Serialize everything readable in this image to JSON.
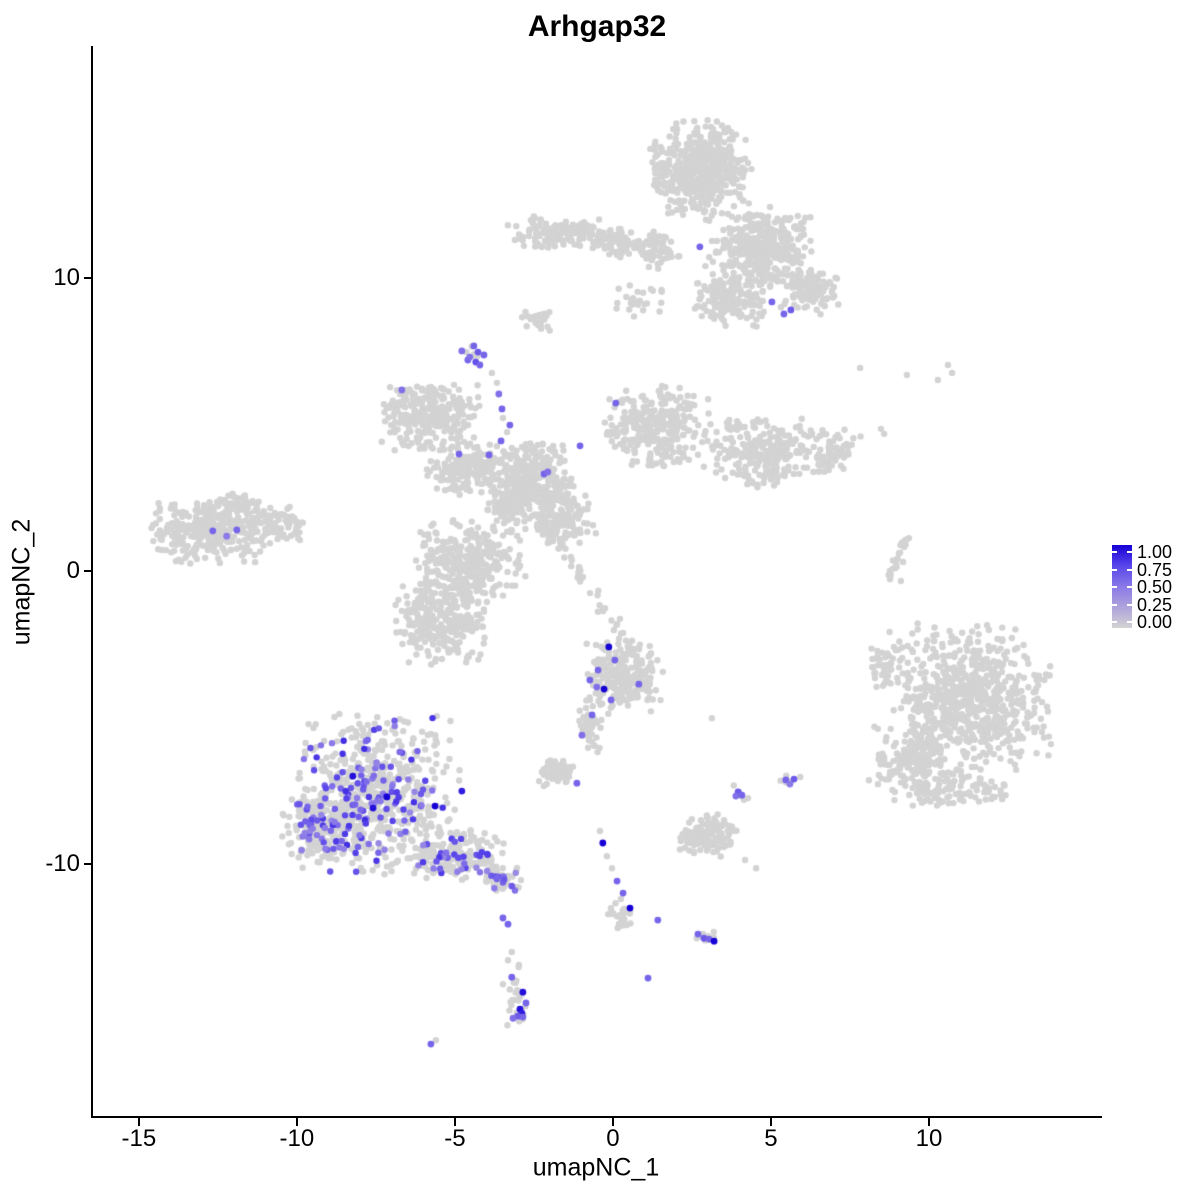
{
  "chart_data": {
    "type": "scatter",
    "title": "Arhgap32",
    "xlabel": "umapNC_1",
    "ylabel": "umapNC_2",
    "x_ticks": [
      -15,
      -10,
      -5,
      0,
      5,
      10
    ],
    "y_ticks": [
      -10,
      0,
      10
    ],
    "x_range": [
      -16.45,
      15.41
    ],
    "y_range": [
      -18.63,
      17.88
    ],
    "grid": false,
    "point_radius": 3.2,
    "colors": {
      "base": "#D3D3D3",
      "scale": [
        "#D3D3D3",
        "#AFA3DC",
        "#8A79E8",
        "#5946EA",
        "#1500D6"
      ]
    },
    "legend": {
      "position": "right",
      "labels": [
        "1.00",
        "0.75",
        "0.50",
        "0.25",
        "0.00"
      ]
    },
    "clusters": [
      {
        "name": "top-main",
        "cx": 2.75,
        "cy": 13.7,
        "rx": 1.45,
        "ry": 1.55,
        "n": 500,
        "ne": 0
      },
      {
        "name": "top-east",
        "cx": 4.65,
        "cy": 10.96,
        "rx": 1.6,
        "ry": 1.35,
        "n": 350,
        "ne": 0
      },
      {
        "name": "top-east-tip",
        "cx": 6.23,
        "cy": 9.59,
        "rx": 0.9,
        "ry": 0.75,
        "n": 120,
        "ne": 0
      },
      {
        "name": "top-band-west",
        "cx": -1.68,
        "cy": 11.54,
        "rx": 1.55,
        "ry": 0.5,
        "n": 140,
        "ne": 0
      },
      {
        "name": "top-band-mid",
        "cx": 0.22,
        "cy": 11.23,
        "rx": 0.95,
        "ry": 0.48,
        "n": 90,
        "ne": 0
      },
      {
        "name": "top-band-join",
        "cx": 1.49,
        "cy": 10.96,
        "rx": 0.65,
        "ry": 0.6,
        "n": 60,
        "ne": 0
      },
      {
        "name": "top-south-ext",
        "cx": 3.7,
        "cy": 9.25,
        "rx": 1.1,
        "ry": 0.85,
        "n": 150,
        "ne": 0
      },
      {
        "name": "top-sparse-south",
        "cx": 0.85,
        "cy": 9.25,
        "rx": 0.8,
        "ry": 0.65,
        "n": 25,
        "ne": 0
      },
      {
        "name": "small-mid-upper",
        "cx": -2.37,
        "cy": 8.57,
        "rx": 0.47,
        "ry": 0.35,
        "n": 30,
        "ne": 0
      },
      {
        "name": "under-purple-blob",
        "cx": -4.4,
        "cy": 7.4,
        "rx": 0.3,
        "ry": 0.35,
        "n": 6,
        "ne": 0
      },
      {
        "name": "x-arm-nw",
        "cx": -5.79,
        "cy": 5.32,
        "rx": 1.42,
        "ry": 1.09,
        "n": 280,
        "ne": 0
      },
      {
        "name": "x-arm-w",
        "cx": -4.59,
        "cy": 3.52,
        "rx": 1.2,
        "ry": 0.89,
        "n": 180,
        "ne": 0
      },
      {
        "name": "x-center",
        "cx": -2.56,
        "cy": 3.11,
        "rx": 1.27,
        "ry": 1.19,
        "n": 280,
        "ne": 0
      },
      {
        "name": "x-arm-ne",
        "cx": 1.42,
        "cy": 4.88,
        "rx": 1.52,
        "ry": 1.37,
        "n": 300,
        "ne": 0
      },
      {
        "name": "x-arm-e",
        "cx": 4.59,
        "cy": 4.06,
        "rx": 1.52,
        "ry": 1.13,
        "n": 230,
        "ne": 0
      },
      {
        "name": "x-arm-e-tip",
        "cx": 6.87,
        "cy": 4.06,
        "rx": 0.9,
        "ry": 0.75,
        "n": 70,
        "ne": 0
      },
      {
        "name": "x-center-s",
        "cx": -1.61,
        "cy": 1.74,
        "rx": 0.95,
        "ry": 0.85,
        "n": 140,
        "ne": 0
      },
      {
        "name": "x-lobe-sw",
        "cx": -4.53,
        "cy": 0.31,
        "rx": 1.58,
        "ry": 1.37,
        "n": 320,
        "ne": 0
      },
      {
        "name": "x-lobe-sw2",
        "cx": -5.41,
        "cy": -1.74,
        "rx": 1.42,
        "ry": 1.37,
        "n": 280,
        "ne": 0
      },
      {
        "name": "x-join",
        "cx": -3.26,
        "cy": 2.25,
        "rx": 0.7,
        "ry": 0.85,
        "n": 80,
        "ne": 0
      },
      {
        "name": "left-main",
        "cx": -12.75,
        "cy": 1.33,
        "rx": 1.65,
        "ry": 1.02,
        "n": 300,
        "ne": 0
      },
      {
        "name": "left-east",
        "cx": -10.79,
        "cy": 1.57,
        "rx": 0.9,
        "ry": 0.6,
        "n": 90,
        "ne": 0
      },
      {
        "name": "left-north",
        "cx": -11.96,
        "cy": 2.25,
        "rx": 0.8,
        "ry": 0.4,
        "n": 50,
        "ne": 0
      },
      {
        "name": "right-main",
        "cx": 11.36,
        "cy": -4.4,
        "rx": 2.28,
        "ry": 2.32,
        "n": 700,
        "ne": 0
      },
      {
        "name": "right-sw-arm",
        "cx": 9.46,
        "cy": -6.52,
        "rx": 1.2,
        "ry": 1.19,
        "n": 170,
        "ne": 0
      },
      {
        "name": "right-w-app",
        "cx": 8.7,
        "cy": -3.31,
        "rx": 0.57,
        "ry": 0.85,
        "n": 50,
        "ne": 0
      },
      {
        "name": "right-s-fringe",
        "cx": 10.98,
        "cy": -7.47,
        "rx": 1.6,
        "ry": 0.6,
        "n": 80,
        "ne": 0
      },
      {
        "name": "mid-main",
        "cx": 0.28,
        "cy": -3.65,
        "rx": 1.14,
        "ry": 1.16,
        "n": 230,
        "ne": 0
      },
      {
        "name": "mid-tail",
        "cx": -0.73,
        "cy": -5.43,
        "rx": 0.38,
        "ry": 0.75,
        "n": 45,
        "ne": 0
      },
      {
        "name": "small-blob-w",
        "cx": -1.77,
        "cy": -6.89,
        "rx": 0.54,
        "ry": 0.44,
        "n": 55,
        "ne": 0
      },
      {
        "name": "dot-blob-a",
        "cx": 4.02,
        "cy": -7.58,
        "rx": 0.28,
        "ry": 0.27,
        "n": 5,
        "ne": 0
      },
      {
        "name": "dot-blob-b",
        "cx": 5.63,
        "cy": -7.17,
        "rx": 0.35,
        "ry": 0.27,
        "n": 6,
        "ne": 0
      },
      {
        "name": "low-mid",
        "cx": 3.07,
        "cy": -9.01,
        "rx": 0.9,
        "ry": 0.75,
        "n": 130,
        "ne": 0
      },
      {
        "name": "trail-blob",
        "cx": 0.28,
        "cy": -11.74,
        "rx": 0.44,
        "ry": 0.55,
        "n": 28,
        "ne": 0
      },
      {
        "name": "trail-end",
        "cx": 2.94,
        "cy": -12.56,
        "rx": 0.41,
        "ry": 0.27,
        "n": 12,
        "ne": 0
      },
      {
        "name": "bl-main",
        "cx": -7.53,
        "cy": -7.65,
        "rx": 2.37,
        "ry": 2.56,
        "n": 560,
        "ne": 130,
        "vlo": 0.4,
        "vhi": 0.85
      },
      {
        "name": "bl-west",
        "cx": -9.27,
        "cy": -8.84,
        "rx": 1.11,
        "ry": 1.02,
        "n": 120,
        "ne": 28,
        "vlo": 0.4,
        "vhi": 0.8
      },
      {
        "name": "bl-tail",
        "cx": -4.84,
        "cy": -9.69,
        "rx": 1.27,
        "ry": 0.85,
        "n": 140,
        "ne": 30,
        "vlo": 0.4,
        "vhi": 0.8
      },
      {
        "name": "bl-tail-far",
        "cx": -3.42,
        "cy": -10.55,
        "rx": 0.57,
        "ry": 0.41,
        "n": 40,
        "ne": 10,
        "vlo": 0.4,
        "vhi": 0.7
      },
      {
        "name": "bottom-blob",
        "cx": -3.07,
        "cy": -14.47,
        "rx": 0.28,
        "ry": 1.02,
        "n": 25,
        "ne": 0
      }
    ],
    "streaks": [
      {
        "name": "diagonal-streak",
        "x1": -2.25,
        "y1": 1.74,
        "x2": 1.11,
        "y2": -3.45,
        "n": 55,
        "jitter": 0.12
      },
      {
        "name": "right-trail",
        "x1": 8.7,
        "y1": -0.41,
        "x2": 9.27,
        "y2": 1.13,
        "n": 22,
        "jitter": 0.06
      }
    ],
    "singles": [
      [
        7.82,
        6.93
      ],
      [
        9.3,
        6.69
      ],
      [
        10.6,
        7.03
      ],
      [
        10.73,
        6.76
      ],
      [
        10.28,
        6.52
      ],
      [
        8.48,
        4.85
      ],
      [
        8.58,
        4.68
      ],
      [
        9.05,
        0.61
      ],
      [
        9.18,
        0.31
      ],
      [
        9.11,
        -0.34
      ],
      [
        -3.83,
        6.76
      ],
      [
        -3.67,
        6.42
      ],
      [
        -3.48,
        5.22
      ],
      [
        -3.35,
        4.74
      ],
      [
        -3.2,
        4.2
      ],
      [
        -3.07,
        3.92
      ],
      [
        3.13,
        -5.02
      ],
      [
        9.49,
        -2.76
      ],
      [
        -0.41,
        -8.87
      ],
      [
        -0.19,
        -9.73
      ],
      [
        -0.03,
        -10.14
      ],
      [
        4.18,
        -9.86
      ],
      [
        4.53,
        -10.14
      ],
      [
        -3.48,
        -14.1
      ],
      [
        -3.32,
        -13.28
      ],
      [
        -3.2,
        -13.0
      ],
      [
        -5.6,
        -16.01
      ]
    ],
    "expressed_points": [
      [
        2.75,
        11.06,
        0.6
      ],
      [
        5.03,
        9.18,
        0.6
      ],
      [
        5.41,
        8.77,
        0.6
      ],
      [
        5.63,
        8.91,
        0.65
      ],
      [
        -4.4,
        7.68,
        0.6
      ],
      [
        -4.78,
        7.51,
        0.55
      ],
      [
        -4.27,
        7.47,
        0.65
      ],
      [
        -4.08,
        7.37,
        0.6
      ],
      [
        -4.59,
        7.2,
        0.6
      ],
      [
        -4.34,
        7.13,
        0.7
      ],
      [
        -4.53,
        7.3,
        0.55
      ],
      [
        -4.21,
        7.03,
        0.6
      ],
      [
        -3.61,
        6.04,
        0.55
      ],
      [
        -3.51,
        5.53,
        0.6
      ],
      [
        -3.26,
        4.98,
        0.6
      ],
      [
        -3.54,
        4.44,
        0.6
      ],
      [
        -6.68,
        6.18,
        0.55
      ],
      [
        0.09,
        5.73,
        0.6
      ],
      [
        -4.87,
        3.99,
        0.6
      ],
      [
        -3.92,
        3.96,
        0.6
      ],
      [
        -2.18,
        3.31,
        0.6
      ],
      [
        -2.06,
        3.38,
        0.55
      ],
      [
        -1.04,
        4.27,
        0.6
      ],
      [
        -12.66,
        1.37,
        0.6
      ],
      [
        -12.22,
        1.19,
        0.5
      ],
      [
        -11.9,
        1.4,
        0.6
      ],
      [
        -0.13,
        -2.59,
        1.0
      ],
      [
        -0.28,
        -4.03,
        1.0
      ],
      [
        0.06,
        -3.04,
        0.6
      ],
      [
        -0.47,
        -3.38,
        0.6
      ],
      [
        -0.73,
        -3.72,
        0.6
      ],
      [
        -0.51,
        -3.96,
        0.55
      ],
      [
        -0.06,
        -4.4,
        0.6
      ],
      [
        0.82,
        -3.86,
        0.6
      ],
      [
        -0.66,
        -4.91,
        0.6
      ],
      [
        -0.98,
        -5.6,
        0.55
      ],
      [
        -1.14,
        -7.24,
        0.6
      ],
      [
        3.96,
        -7.54,
        0.65
      ],
      [
        4.08,
        -7.65,
        0.6
      ],
      [
        3.89,
        -7.68,
        0.55
      ],
      [
        5.47,
        -7.13,
        0.6
      ],
      [
        5.73,
        -7.1,
        0.65
      ],
      [
        5.6,
        -7.27,
        0.5
      ],
      [
        -0.32,
        -9.28,
        1.0
      ],
      [
        0.13,
        -10.58,
        0.6
      ],
      [
        0.32,
        -10.99,
        0.6
      ],
      [
        0.54,
        -11.5,
        1.0
      ],
      [
        1.42,
        -11.91,
        0.6
      ],
      [
        2.69,
        -12.39,
        0.6
      ],
      [
        2.88,
        -12.53,
        0.65
      ],
      [
        3.04,
        -12.56,
        0.6
      ],
      [
        3.2,
        -12.63,
        1.0
      ],
      [
        1.11,
        -13.89,
        0.6
      ],
      [
        -8.23,
        -7.0,
        0.95
      ],
      [
        -7.15,
        -7.71,
        1.0
      ],
      [
        -7.59,
        -8.09,
        0.95
      ],
      [
        -5.63,
        -8.02,
        1.0
      ],
      [
        -4.78,
        -7.51,
        0.9
      ],
      [
        -3.67,
        -10.48,
        0.6
      ],
      [
        -3.2,
        -10.75,
        0.65
      ],
      [
        -3.48,
        -11.84,
        0.6
      ],
      [
        -3.32,
        -12.05,
        0.6
      ],
      [
        -3.2,
        -13.86,
        0.6
      ],
      [
        -2.85,
        -14.37,
        0.95
      ],
      [
        -2.75,
        -14.74,
        0.6
      ],
      [
        -2.94,
        -14.95,
        0.95
      ],
      [
        -2.88,
        -15.09,
        0.9
      ],
      [
        -3.01,
        -15.19,
        0.65
      ],
      [
        -2.85,
        -15.22,
        0.6
      ],
      [
        -3.16,
        -15.26,
        0.55
      ],
      [
        -5.76,
        -16.14,
        0.6
      ]
    ]
  }
}
